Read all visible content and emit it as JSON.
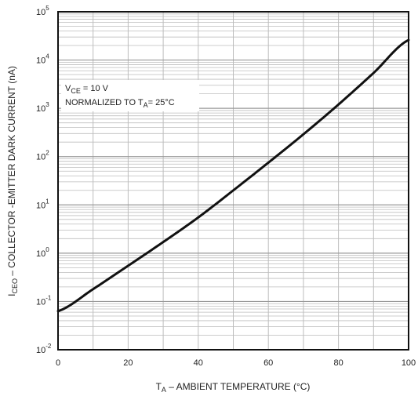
{
  "chart_data": {
    "type": "line",
    "title": "",
    "xlabel": {
      "main": "T",
      "sub": "A",
      "rest": " – AMBIENT TEMPERATURE (°C)"
    },
    "ylabel": {
      "main": "I",
      "sub": "CEO",
      "rest": " – COLLECTOR -EMITTER DARK CURRENT (nA)"
    },
    "xlim": [
      0,
      100
    ],
    "ylim": [
      0.01,
      100000
    ],
    "yscale": "log",
    "grid": true,
    "x_ticks": [
      "0",
      "20",
      "40",
      "60",
      "80",
      "100"
    ],
    "y_ticks": [
      {
        "base": "10",
        "exp": "-2"
      },
      {
        "base": "10",
        "exp": "-1"
      },
      {
        "base": "10",
        "exp": "0"
      },
      {
        "base": "10",
        "exp": "1"
      },
      {
        "base": "10",
        "exp": "2"
      },
      {
        "base": "10",
        "exp": "3"
      },
      {
        "base": "10",
        "exp": "4"
      },
      {
        "base": "10",
        "exp": "5"
      }
    ],
    "annotations": {
      "line1": {
        "main": "V",
        "sub": "CE",
        "rest": " = 10 V"
      },
      "line2": {
        "main": "NORMALIZED TO T",
        "sub": "A",
        "rest": "= 25°C"
      }
    },
    "series": [
      {
        "x": [
          0,
          10,
          20,
          30,
          40,
          50,
          60,
          70,
          80,
          90,
          100
        ],
        "y": [
          0.063,
          0.18,
          0.55,
          1.7,
          5.5,
          20,
          75,
          290,
          1200,
          5400,
          26000
        ]
      }
    ],
    "colors": {
      "line": "#111111",
      "grid": "#bdbdbd",
      "frame": "#111111"
    }
  }
}
